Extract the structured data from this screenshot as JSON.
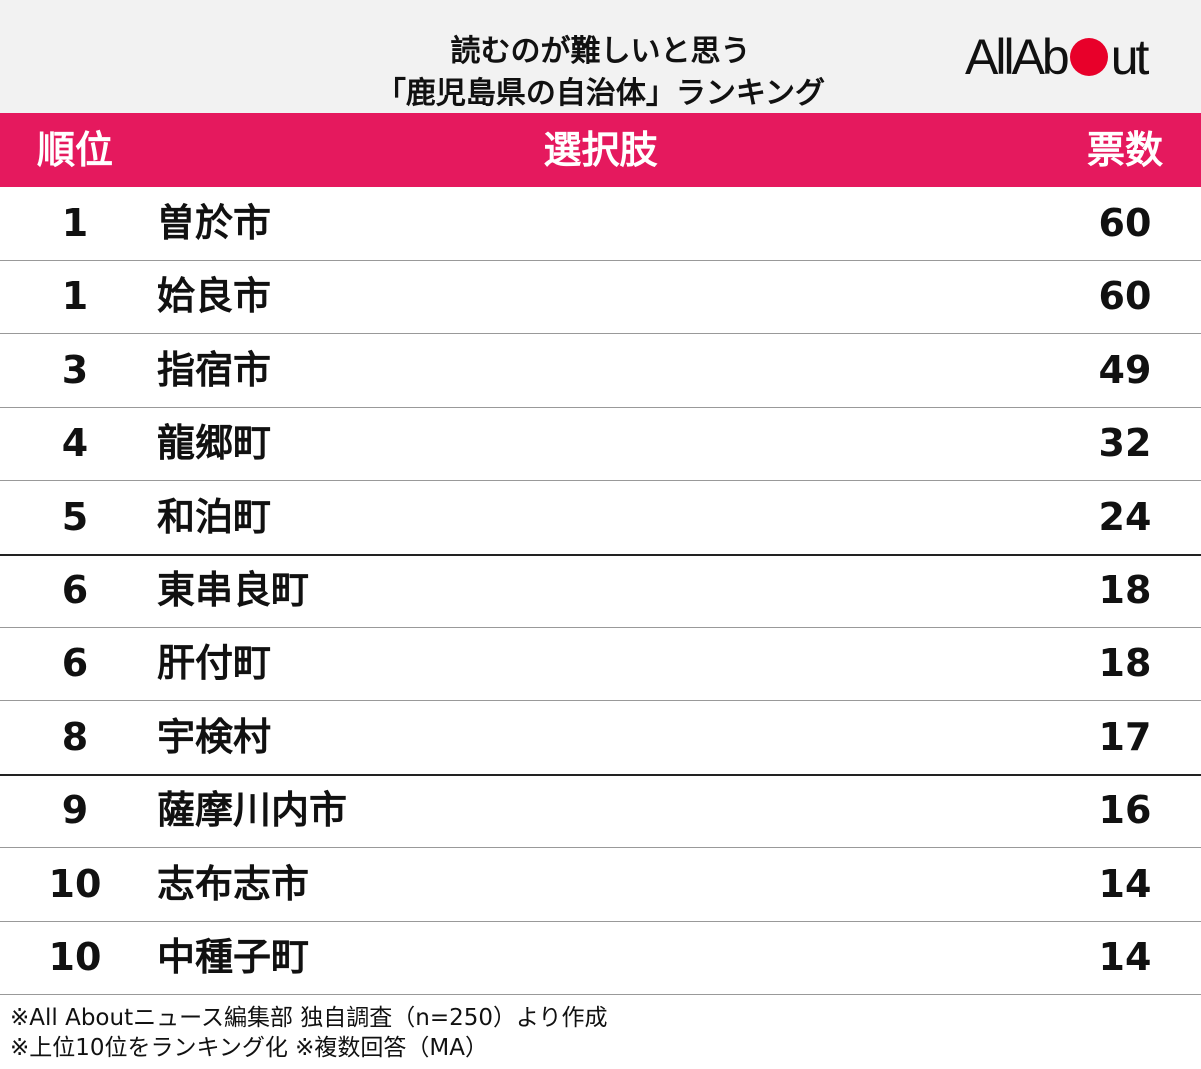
{
  "header": {
    "title_lines": [
      "読むのが難しいと思う",
      "「鹿児島県の自治体」ランキング"
    ],
    "logo": [
      "AllAb",
      "o",
      "ut"
    ]
  },
  "table": {
    "columns": [
      "順位",
      "選択肢",
      "票数"
    ],
    "rows": [
      {
        "rank": 1,
        "name": "曽於市",
        "votes": 60
      },
      {
        "rank": 1,
        "name": "姶良市",
        "votes": 60
      },
      {
        "rank": 3,
        "name": "指宿市",
        "votes": 49
      },
      {
        "rank": 4,
        "name": "龍郷町",
        "votes": 32
      },
      {
        "rank": 5,
        "name": "和泊町",
        "votes": 24
      },
      {
        "rank": 6,
        "name": "東串良町",
        "votes": 18
      },
      {
        "rank": 6,
        "name": "肝付町",
        "votes": 18
      },
      {
        "rank": 8,
        "name": "宇検村",
        "votes": 17
      },
      {
        "rank": 9,
        "name": "薩摩川内市",
        "votes": 16
      },
      {
        "rank": 10,
        "name": "志布志市",
        "votes": 14
      },
      {
        "rank": 10,
        "name": "中種子町",
        "votes": 14
      }
    ]
  },
  "footnotes": [
    "※All Aboutニュース編集部 独自調査（n=250）より作成",
    "※上位10位をランキング化 ※複数回答（MA）"
  ]
}
